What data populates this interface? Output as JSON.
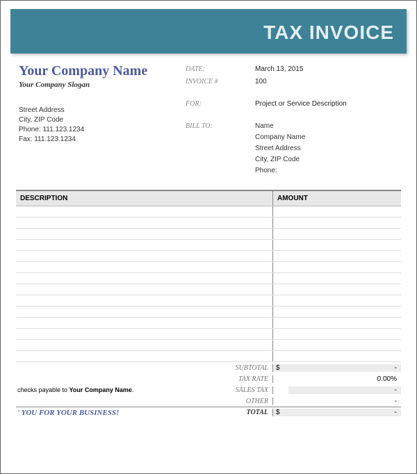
{
  "banner": {
    "title": "TAX INVOICE"
  },
  "company": {
    "name": "Your Company Name",
    "slogan": "Your Company Slogan",
    "address": {
      "street": "Street Address",
      "city_zip": "City, ZIP Code",
      "phone": "Phone: 111.123.1234",
      "fax": "Fax: 111.123.1234"
    }
  },
  "meta": {
    "date_label": "DATE:",
    "date_value": "March 13, 2015",
    "invoice_label": "INVOICE #",
    "invoice_value": "100",
    "for_label": "FOR:",
    "for_value": "Project or Service Description",
    "billto_label": "BILL TO:"
  },
  "billto": {
    "name": "Name",
    "company": "Company Name",
    "street": "Street Address",
    "city_zip": "City, ZIP Code",
    "phone": "Phone:"
  },
  "table": {
    "headers": {
      "description": "DESCRIPTION",
      "amount": "AMOUNT"
    },
    "row_count": 14
  },
  "totals": {
    "subtotal_label": "SUBTOTAL",
    "subtotal_currency": "$",
    "subtotal_value": "-",
    "taxrate_label": "TAX RATE",
    "taxrate_value": "0.00%",
    "salestax_label": "SALES TAX",
    "salestax_value": "-",
    "other_label": "OTHER",
    "other_value": "-",
    "total_label": "TOTAL",
    "total_currency": "$",
    "total_value": "-"
  },
  "footer": {
    "payable_prefix": "checks payable to ",
    "payable_name": "Your Company Name",
    "payable_suffix": ".",
    "thankyou": "' YOU FOR YOUR BUSINESS!"
  },
  "styling": {
    "banner_bg": "#3d8297",
    "banner_text": "#e5eef1",
    "accent": "#4a5a9e",
    "header_bg": "#e7e7e7",
    "grey_row": "#ececec",
    "border": "#888",
    "line": "#ddd"
  }
}
